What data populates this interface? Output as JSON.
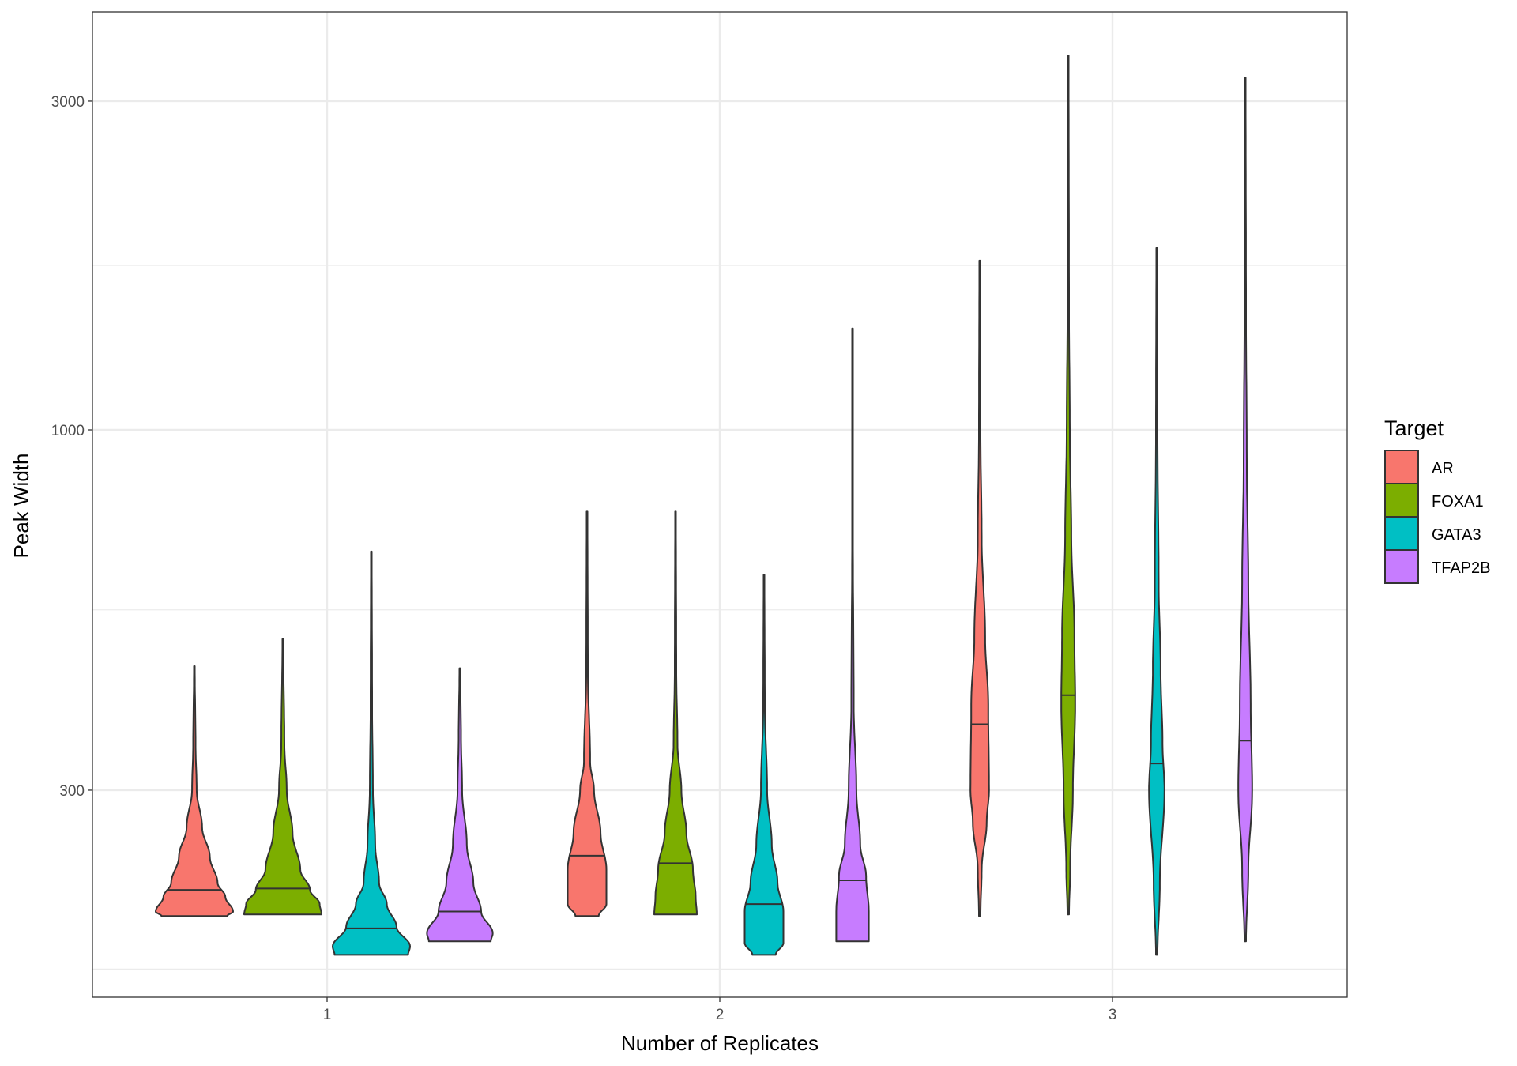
{
  "chart_data": {
    "type": "violin",
    "xlabel": "Number of Replicates",
    "ylabel": "Peak Width",
    "y_scale": "log10",
    "ylim": [
      150,
      4000
    ],
    "y_ticks": [
      300,
      1000,
      3000
    ],
    "y_minor_grid": [
      165,
      548,
      1732
    ],
    "categories": [
      "1",
      "2",
      "3"
    ],
    "grid": true,
    "legend": {
      "title": "Target",
      "position": "right"
    },
    "series": [
      {
        "name": "AR",
        "color": "#F8766D",
        "violins": [
          {
            "category": "1",
            "min": 197,
            "median": 215,
            "max": 454,
            "profile": [
              [
                197,
                0.85
              ],
              [
                200,
                1.0
              ],
              [
                210,
                0.8
              ],
              [
                220,
                0.6
              ],
              [
                240,
                0.4
              ],
              [
                265,
                0.2
              ],
              [
                300,
                0.06
              ],
              [
                350,
                0.03
              ],
              [
                454,
                0.01
              ]
            ]
          },
          {
            "category": "2",
            "min": 197,
            "median": 241,
            "max": 761,
            "profile": [
              [
                197,
                0.3
              ],
              [
                205,
                0.5
              ],
              [
                230,
                0.5
              ],
              [
                260,
                0.35
              ],
              [
                300,
                0.18
              ],
              [
                330,
                0.08
              ],
              [
                450,
                0.02
              ],
              [
                761,
                0.01
              ]
            ]
          },
          {
            "category": "3",
            "min": 197,
            "median": 374,
            "max": 1760,
            "profile": [
              [
                197,
                0.02
              ],
              [
                230,
                0.05
              ],
              [
                270,
                0.18
              ],
              [
                300,
                0.24
              ],
              [
                400,
                0.22
              ],
              [
                500,
                0.14
              ],
              [
                700,
                0.05
              ],
              [
                1000,
                0.02
              ],
              [
                1760,
                0.01
              ]
            ]
          }
        ]
      },
      {
        "name": "FOXA1",
        "color": "#7CAE00",
        "violins": [
          {
            "category": "1",
            "min": 198,
            "median": 216,
            "max": 497,
            "profile": [
              [
                198,
                1.0
              ],
              [
                205,
                0.95
              ],
              [
                215,
                0.7
              ],
              [
                230,
                0.45
              ],
              [
                260,
                0.25
              ],
              [
                300,
                0.1
              ],
              [
                350,
                0.04
              ],
              [
                497,
                0.01
              ]
            ]
          },
          {
            "category": "2",
            "min": 198,
            "median": 235,
            "max": 761,
            "profile": [
              [
                198,
                0.55
              ],
              [
                210,
                0.52
              ],
              [
                230,
                0.45
              ],
              [
                260,
                0.28
              ],
              [
                300,
                0.15
              ],
              [
                350,
                0.05
              ],
              [
                450,
                0.02
              ],
              [
                761,
                0.01
              ]
            ]
          },
          {
            "category": "3",
            "min": 198,
            "median": 412,
            "max": 3493,
            "profile": [
              [
                198,
                0.02
              ],
              [
                230,
                0.05
              ],
              [
                300,
                0.12
              ],
              [
                400,
                0.18
              ],
              [
                500,
                0.16
              ],
              [
                700,
                0.08
              ],
              [
                1000,
                0.04
              ],
              [
                1500,
                0.02
              ],
              [
                3493,
                0.01
              ]
            ]
          }
        ]
      },
      {
        "name": "GATA3",
        "color": "#00BFC4",
        "violins": [
          {
            "category": "1",
            "min": 173,
            "median": 189,
            "max": 666,
            "profile": [
              [
                173,
                0.95
              ],
              [
                178,
                1.0
              ],
              [
                190,
                0.65
              ],
              [
                205,
                0.4
              ],
              [
                220,
                0.2
              ],
              [
                250,
                0.1
              ],
              [
                300,
                0.04
              ],
              [
                400,
                0.02
              ],
              [
                666,
                0.01
              ]
            ]
          },
          {
            "category": "2",
            "min": 173,
            "median": 205,
            "max": 616,
            "profile": [
              [
                173,
                0.3
              ],
              [
                180,
                0.5
              ],
              [
                200,
                0.5
              ],
              [
                220,
                0.35
              ],
              [
                250,
                0.2
              ],
              [
                300,
                0.08
              ],
              [
                400,
                0.02
              ],
              [
                616,
                0.01
              ]
            ]
          },
          {
            "category": "3",
            "min": 173,
            "median": 328,
            "max": 1836,
            "profile": [
              [
                173,
                0.02
              ],
              [
                220,
                0.08
              ],
              [
                300,
                0.2
              ],
              [
                350,
                0.15
              ],
              [
                450,
                0.1
              ],
              [
                600,
                0.05
              ],
              [
                1000,
                0.02
              ],
              [
                1836,
                0.01
              ]
            ]
          }
        ]
      },
      {
        "name": "TFAP2B",
        "color": "#C77CFF",
        "violins": [
          {
            "category": "1",
            "min": 181,
            "median": 200,
            "max": 451,
            "profile": [
              [
                181,
                0.8
              ],
              [
                186,
                0.85
              ],
              [
                200,
                0.55
              ],
              [
                220,
                0.35
              ],
              [
                250,
                0.18
              ],
              [
                300,
                0.06
              ],
              [
                360,
                0.03
              ],
              [
                451,
                0.01
              ]
            ]
          },
          {
            "category": "2",
            "min": 181,
            "median": 222,
            "max": 1403,
            "profile": [
              [
                181,
                0.42
              ],
              [
                200,
                0.42
              ],
              [
                225,
                0.35
              ],
              [
                250,
                0.2
              ],
              [
                300,
                0.1
              ],
              [
                400,
                0.03
              ],
              [
                700,
                0.01
              ],
              [
                1403,
                0.01
              ]
            ]
          },
          {
            "category": "3",
            "min": 181,
            "median": 354,
            "max": 3243,
            "profile": [
              [
                181,
                0.02
              ],
              [
                230,
                0.08
              ],
              [
                300,
                0.18
              ],
              [
                400,
                0.14
              ],
              [
                600,
                0.08
              ],
              [
                900,
                0.04
              ],
              [
                1500,
                0.02
              ],
              [
                3243,
                0.01
              ]
            ]
          }
        ]
      }
    ]
  }
}
